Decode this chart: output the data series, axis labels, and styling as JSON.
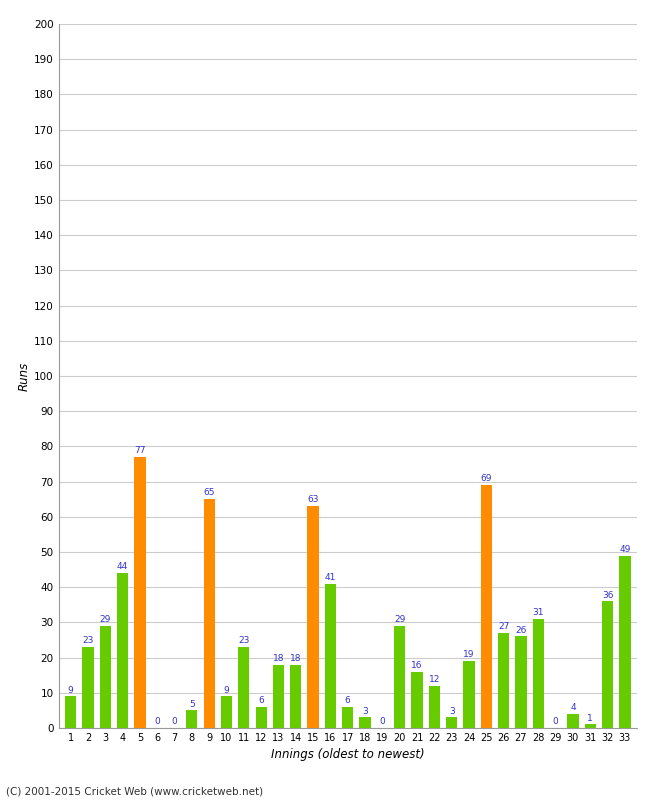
{
  "innings": [
    1,
    2,
    3,
    4,
    5,
    6,
    7,
    8,
    9,
    10,
    11,
    12,
    13,
    14,
    15,
    16,
    17,
    18,
    19,
    20,
    21,
    22,
    23,
    24,
    25,
    26,
    27,
    28,
    29,
    30,
    31,
    32,
    33
  ],
  "values": [
    9,
    23,
    29,
    44,
    77,
    0,
    0,
    5,
    65,
    9,
    23,
    6,
    18,
    18,
    63,
    41,
    6,
    3,
    0,
    29,
    16,
    12,
    3,
    19,
    69,
    27,
    26,
    31,
    0,
    4,
    1,
    36,
    49
  ],
  "colors": [
    "#66cc00",
    "#66cc00",
    "#66cc00",
    "#66cc00",
    "#ff8c00",
    "#66cc00",
    "#66cc00",
    "#66cc00",
    "#ff8c00",
    "#66cc00",
    "#66cc00",
    "#66cc00",
    "#66cc00",
    "#66cc00",
    "#ff8c00",
    "#66cc00",
    "#66cc00",
    "#66cc00",
    "#66cc00",
    "#66cc00",
    "#66cc00",
    "#66cc00",
    "#66cc00",
    "#66cc00",
    "#ff8c00",
    "#66cc00",
    "#66cc00",
    "#66cc00",
    "#66cc00",
    "#66cc00",
    "#66cc00",
    "#66cc00",
    "#66cc00"
  ],
  "label_color": "#3333cc",
  "xlabel": "Innings (oldest to newest)",
  "ylabel": "Runs",
  "ylim": [
    0,
    200
  ],
  "yticks": [
    0,
    10,
    20,
    30,
    40,
    50,
    60,
    70,
    80,
    90,
    100,
    110,
    120,
    130,
    140,
    150,
    160,
    170,
    180,
    190,
    200
  ],
  "bg_color": "#ffffff",
  "grid_color": "#cccccc",
  "footer": "(C) 2001-2015 Cricket Web (www.cricketweb.net)"
}
